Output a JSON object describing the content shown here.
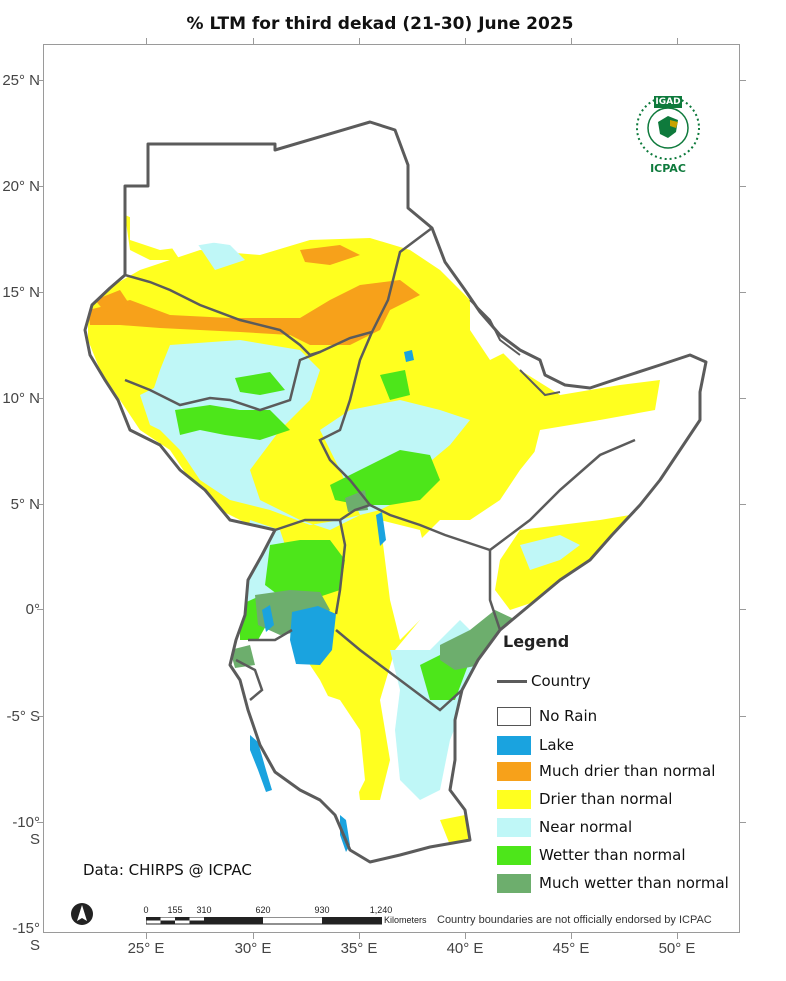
{
  "title": "% LTM  for  third  dekad (21-30)  June 2025",
  "axes": {
    "lat_labels": [
      "25° N",
      "20° N",
      "15° N",
      "10° N",
      "5° N",
      "0°",
      "-5° S",
      "-10° S",
      "-15° S"
    ],
    "lon_labels": [
      "25° E",
      "30° E",
      "35° E",
      "40° E",
      "45° E",
      "50° E"
    ]
  },
  "legend": {
    "title": "Legend",
    "country_label": "Country",
    "items": [
      {
        "label": "No Rain",
        "color": "#ffffff"
      },
      {
        "label": "Lake",
        "color": "#1aa3df"
      },
      {
        "label": "Much drier than normal",
        "color": "#f7a11a"
      },
      {
        "label": "Drier than normal",
        "color": "#ffff1f"
      },
      {
        "label": "Near normal",
        "color": "#bff7f7"
      },
      {
        "label": "Wetter than normal",
        "color": "#4de61a"
      },
      {
        "label": "Much wetter than normal",
        "color": "#6dae6d"
      }
    ]
  },
  "credit": "Data: CHIRPS @ ICPAC",
  "disclaimer": "Country boundaries are not officially endorsed by ICPAC",
  "scale": {
    "ticks": [
      "0",
      "155",
      "310",
      "620",
      "930",
      "1,240"
    ],
    "unit": "Kilometers"
  },
  "logo": {
    "top_text": "IGAD",
    "bottom_text": "ICPAC"
  },
  "colors": {
    "border": "#5b5b5b",
    "frame": "#9a9a9a"
  }
}
